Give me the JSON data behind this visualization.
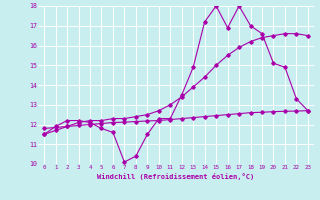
{
  "xlabel": "Windchill (Refroidissement éolien,°C)",
  "bg_color": "#c8eef0",
  "grid_color": "#ffffff",
  "line_color": "#aa00aa",
  "xlim": [
    -0.5,
    23.5
  ],
  "ylim": [
    10,
    18
  ],
  "yticks": [
    10,
    11,
    12,
    13,
    14,
    15,
    16,
    17,
    18
  ],
  "xticks": [
    0,
    1,
    2,
    3,
    4,
    5,
    6,
    7,
    8,
    9,
    10,
    11,
    12,
    13,
    14,
    15,
    16,
    17,
    18,
    19,
    20,
    21,
    22,
    23
  ],
  "hours": [
    0,
    1,
    2,
    3,
    4,
    5,
    6,
    7,
    8,
    9,
    10,
    11,
    12,
    13,
    14,
    15,
    16,
    17,
    18,
    19,
    20,
    21,
    22,
    23
  ],
  "windchill": [
    11.5,
    11.9,
    12.2,
    12.2,
    12.1,
    11.8,
    11.6,
    10.1,
    10.4,
    11.5,
    12.3,
    12.3,
    13.5,
    14.9,
    17.2,
    18.0,
    16.9,
    18.0,
    17.0,
    16.6,
    15.1,
    14.9,
    13.3,
    12.7
  ],
  "smooth1": [
    11.5,
    11.7,
    11.9,
    12.1,
    12.2,
    12.2,
    12.3,
    12.3,
    12.4,
    12.5,
    12.7,
    13.0,
    13.4,
    13.9,
    14.4,
    15.0,
    15.5,
    15.9,
    16.2,
    16.4,
    16.5,
    16.6,
    16.6,
    16.5
  ],
  "smooth2": [
    11.8,
    11.85,
    11.9,
    11.95,
    12.0,
    12.05,
    12.1,
    12.12,
    12.15,
    12.18,
    12.2,
    12.25,
    12.3,
    12.35,
    12.4,
    12.45,
    12.5,
    12.55,
    12.6,
    12.62,
    12.65,
    12.67,
    12.68,
    12.7
  ]
}
